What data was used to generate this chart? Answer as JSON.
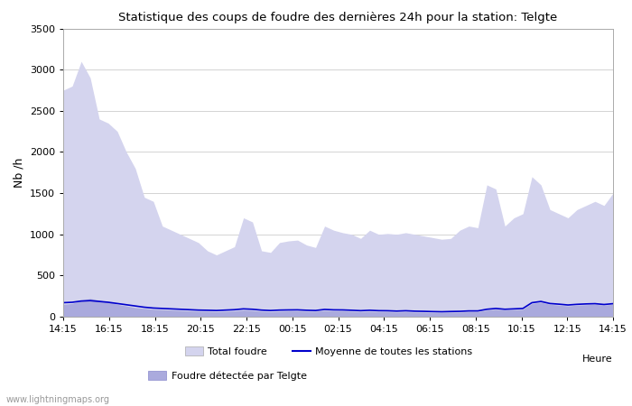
{
  "title": "Statistique des coups de foudre des dernières 24h pour la station: Telgte",
  "xlabel": "Heure",
  "ylabel": "Nb /h",
  "ylim": [
    0,
    3500
  ],
  "yticks": [
    0,
    500,
    1000,
    1500,
    2000,
    2500,
    3000,
    3500
  ],
  "x_labels": [
    "14:15",
    "16:15",
    "18:15",
    "20:15",
    "22:15",
    "00:15",
    "02:15",
    "04:15",
    "06:15",
    "08:15",
    "10:15",
    "12:15",
    "14:15"
  ],
  "bg_color": "#ffffff",
  "plot_bg_color": "#ffffff",
  "watermark": "www.lightningmaps.org",
  "total_foudre_color": "#d4d4ee",
  "telgte_color": "#aaaadd",
  "mean_line_color": "#0000cc",
  "total_foudre": [
    2750,
    2800,
    3100,
    2900,
    2400,
    2350,
    2250,
    2000,
    1800,
    1450,
    1400,
    1100,
    1050,
    1000,
    950,
    900,
    800,
    750,
    800,
    850,
    1200,
    1150,
    800,
    780,
    900,
    920,
    930,
    870,
    840,
    1100,
    1050,
    1020,
    1000,
    950,
    1050,
    1000,
    1010,
    1000,
    1020,
    1000,
    980,
    960,
    940,
    950,
    1050,
    1100,
    1080,
    1600,
    1550,
    1100,
    1200,
    1250,
    1700,
    1600,
    1300,
    1250,
    1200,
    1300,
    1350,
    1400,
    1350,
    1500
  ],
  "telgte": [
    150,
    160,
    200,
    220,
    200,
    180,
    150,
    130,
    110,
    100,
    90,
    85,
    80,
    75,
    70,
    65,
    65,
    60,
    65,
    70,
    80,
    75,
    65,
    60,
    65,
    70,
    70,
    65,
    65,
    75,
    70,
    70,
    65,
    60,
    65,
    60,
    60,
    55,
    60,
    55,
    55,
    50,
    50,
    55,
    55,
    60,
    60,
    80,
    90,
    80,
    85,
    90,
    160,
    175,
    150,
    140,
    130,
    140,
    145,
    150,
    140,
    150
  ],
  "mean_line": [
    170,
    175,
    190,
    195,
    185,
    175,
    160,
    145,
    130,
    115,
    105,
    100,
    95,
    90,
    85,
    80,
    78,
    75,
    80,
    85,
    95,
    90,
    80,
    75,
    80,
    82,
    83,
    78,
    75,
    88,
    83,
    82,
    78,
    73,
    78,
    73,
    72,
    68,
    72,
    67,
    65,
    62,
    60,
    63,
    65,
    70,
    70,
    90,
    100,
    90,
    95,
    100,
    170,
    185,
    160,
    152,
    142,
    150,
    155,
    158,
    148,
    158
  ]
}
